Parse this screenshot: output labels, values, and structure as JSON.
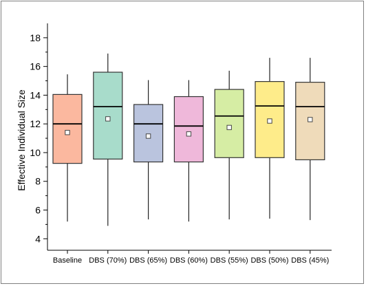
{
  "chart_data": {
    "type": "box",
    "title": "",
    "xlabel": "",
    "ylabel": "Effective Individual Size",
    "ylim": [
      3.2,
      19
    ],
    "yticks": [
      4,
      6,
      8,
      10,
      12,
      14,
      16,
      18
    ],
    "grid": false,
    "legend": "none",
    "categories": [
      "Baseline",
      "DBS (70%)",
      "DBS (65%)",
      "DBS (60%)",
      "DBS (55%)",
      "DBS (50%)",
      "DBS (45%)"
    ],
    "boxes": [
      {
        "name": "Baseline",
        "min": 5.2,
        "q1": 9.25,
        "median": 12.0,
        "q3": 14.05,
        "max": 15.45,
        "mean": 11.4,
        "color": "#FBB89F"
      },
      {
        "name": "DBS (70%)",
        "min": 4.9,
        "q1": 9.55,
        "median": 13.2,
        "q3": 15.6,
        "max": 16.9,
        "mean": 12.35,
        "color": "#A8DCCB"
      },
      {
        "name": "DBS (65%)",
        "min": 5.35,
        "q1": 9.35,
        "median": 12.0,
        "q3": 13.35,
        "max": 15.05,
        "mean": 11.15,
        "color": "#BAC4DE"
      },
      {
        "name": "DBS (60%)",
        "min": 5.2,
        "q1": 9.35,
        "median": 11.85,
        "q3": 13.9,
        "max": 15.05,
        "mean": 11.3,
        "color": "#EFB8DA"
      },
      {
        "name": "DBS (55%)",
        "min": 5.35,
        "q1": 9.65,
        "median": 12.55,
        "q3": 14.4,
        "max": 15.7,
        "mean": 11.75,
        "color": "#D6EDA4"
      },
      {
        "name": "DBS (50%)",
        "min": 5.4,
        "q1": 9.65,
        "median": 13.25,
        "q3": 14.95,
        "max": 16.6,
        "mean": 12.2,
        "color": "#FEEC8A"
      },
      {
        "name": "DBS (45%)",
        "min": 5.3,
        "q1": 9.5,
        "median": 13.2,
        "q3": 14.9,
        "max": 16.6,
        "mean": 12.3,
        "color": "#EFDBBA"
      }
    ]
  }
}
